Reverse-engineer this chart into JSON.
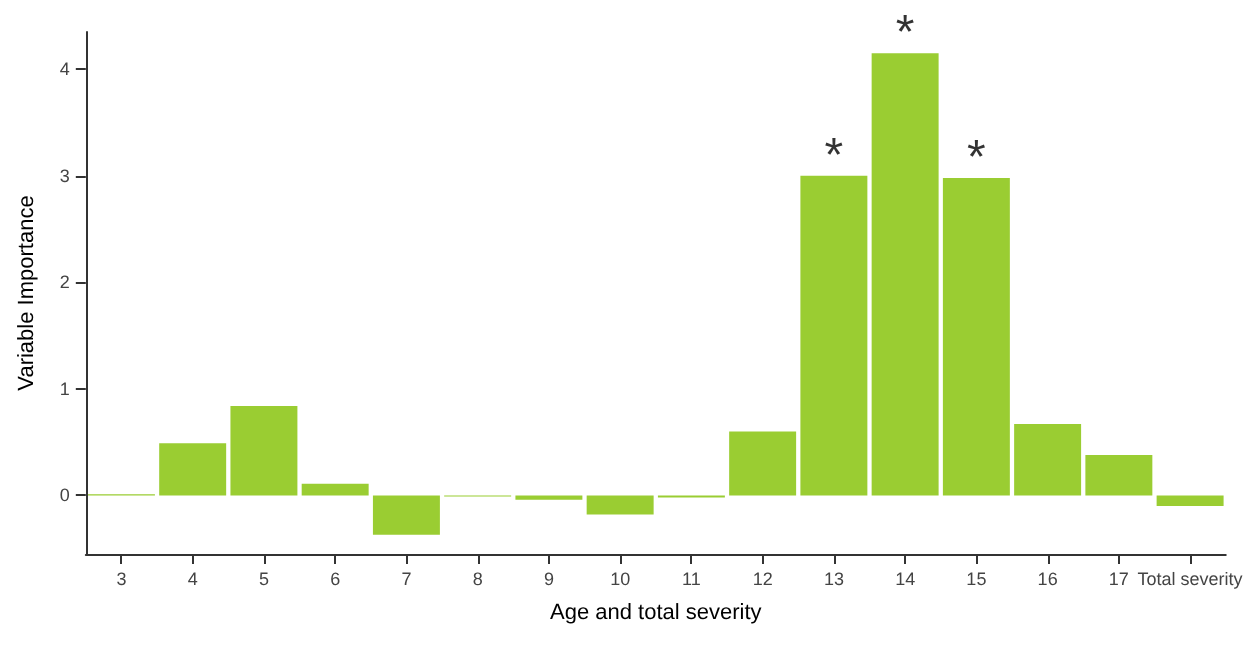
{
  "chart_data": {
    "type": "bar",
    "xlabel": "Age and total severity",
    "ylabel": "Variable Importance",
    "categories": [
      "3",
      "4",
      "5",
      "6",
      "7",
      "8",
      "9",
      "10",
      "11",
      "12",
      "13",
      "14",
      "15",
      "16",
      "17",
      "Total severity"
    ],
    "values": [
      0.01,
      0.49,
      0.84,
      0.11,
      -0.37,
      -0.01,
      -0.04,
      -0.18,
      -0.02,
      0.6,
      3.0,
      4.15,
      2.98,
      0.67,
      0.38,
      -0.1
    ],
    "color": "#9acd32",
    "ylim": [
      -0.55,
      4.35
    ],
    "yticks": [
      0,
      1,
      2,
      3,
      4
    ],
    "grid": false,
    "annotations": [
      {
        "text": "*",
        "x": "13",
        "y": 3.0
      },
      {
        "text": "*",
        "x": "14",
        "y": 4.15
      },
      {
        "text": "*",
        "x": "15",
        "y": 2.98
      }
    ]
  }
}
